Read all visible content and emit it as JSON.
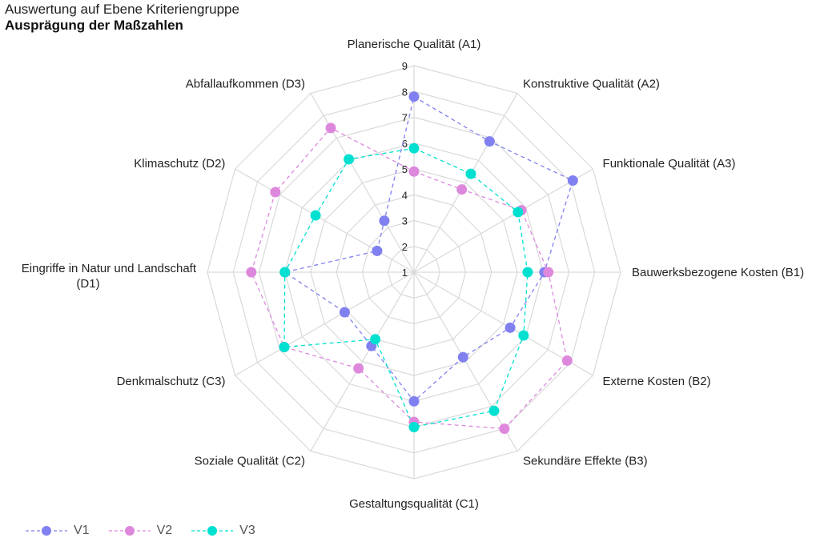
{
  "title": "Auswertung auf Ebene Kriteriengruppe",
  "subtitle": "Ausprägung der Maßzahlen",
  "chart_data": {
    "type": "radar",
    "title": "Auswertung auf Ebene Kriteriengruppe",
    "subtitle": "Ausprägung der Maßzahlen",
    "categories": [
      "Planerische Qualität (A1)",
      "Konstruktive Qualität (A2)",
      "Funktionale Qualität (A3)",
      "Bauwerksbezogene Kosten (B1)",
      "Externe Kosten (B2)",
      "Sekundäre Effekte (B3)",
      "Gestaltungsqualität (C1)",
      "Soziale Qualität (C2)",
      "Denkmalschutz (C3)",
      "Eingriffe in Natur und Landschaft (D1)",
      "Klimaschutz (D2)",
      "Abfallaufkommen (D3)"
    ],
    "series": [
      {
        "name": "V1",
        "color": "#8080f0",
        "values": [
          7.8,
          6.85,
          8.1,
          6.05,
          5.3,
          4.8,
          6.0,
          4.3,
          4.1,
          6.0,
          2.65,
          3.3
        ]
      },
      {
        "name": "V2",
        "color": "#dd88dd",
        "values": [
          4.9,
          4.7,
          5.8,
          6.2,
          7.85,
          8.0,
          6.8,
          5.3,
          6.8,
          7.3,
          7.2,
          7.45
        ]
      },
      {
        "name": "V3",
        "color": "#00e0d0",
        "values": [
          5.8,
          5.4,
          5.65,
          5.4,
          5.9,
          7.2,
          7.0,
          4.0,
          6.8,
          6.0,
          5.4,
          6.05
        ]
      }
    ],
    "radial_ticks": [
      "1",
      "2",
      "3",
      "4",
      "5",
      "6",
      "7",
      "8",
      "9"
    ],
    "rlim": [
      1,
      9
    ],
    "grid": true,
    "line_style": "dashed",
    "legend_position": "bottom-left"
  },
  "legend": [
    {
      "label": "V1",
      "color": "#8080f0"
    },
    {
      "label": "V2",
      "color": "#dd88dd"
    },
    {
      "label": "V3",
      "color": "#00e0d0"
    }
  ]
}
